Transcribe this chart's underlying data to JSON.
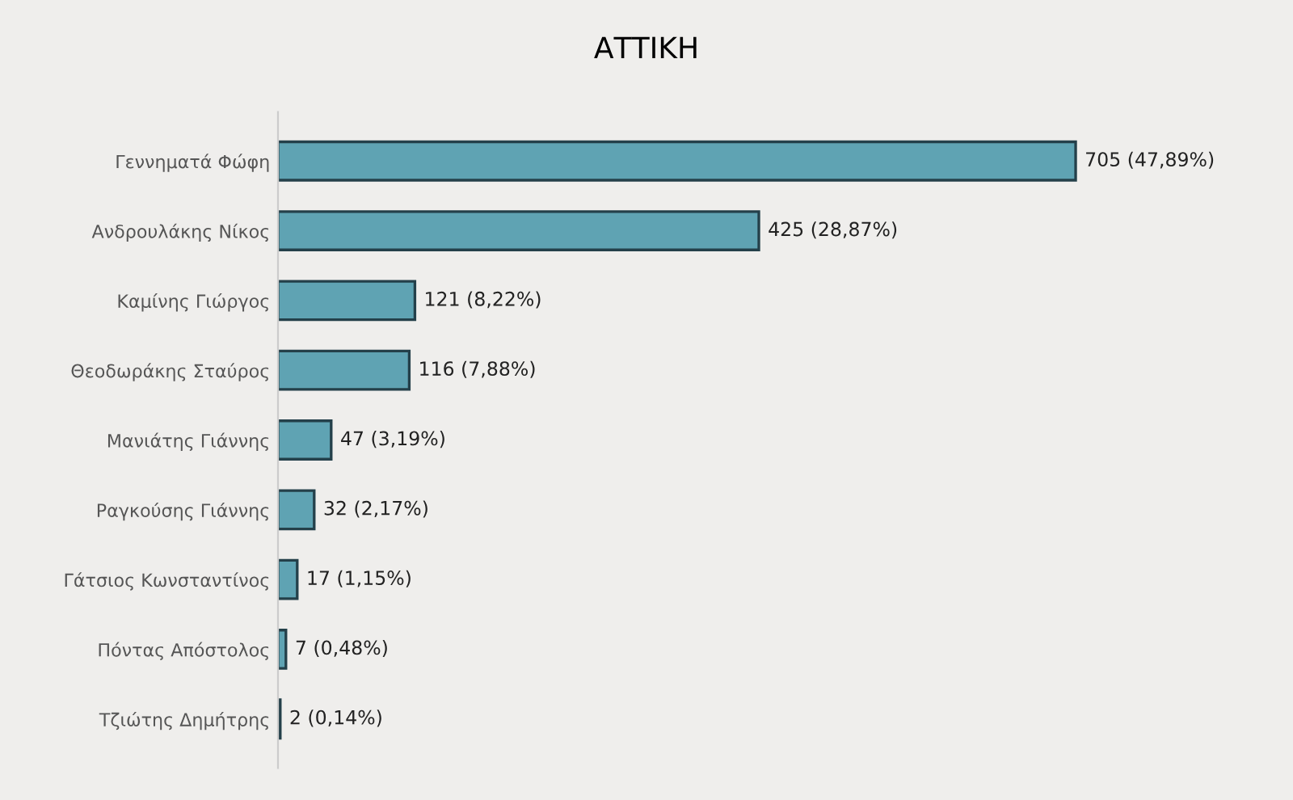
{
  "chart_data": {
    "type": "bar",
    "orientation": "horizontal",
    "title": "ΑΤΤΙΚΗ",
    "categories": [
      "Γεννηματά Φώφη",
      "Ανδρουλάκης Νίκος",
      "Καμίνης Γιώργος",
      "Θεοδωράκης Σταύρος",
      "Μανιάτης Γιάννης",
      "Ραγκούσης Γιάννης",
      "Γάτσιος Κωνσταντίνος",
      "Πόντας Απόστολος",
      "Τζιώτης Δημήτρης"
    ],
    "values": [
      705,
      425,
      121,
      116,
      47,
      32,
      17,
      7,
      2
    ],
    "value_labels": [
      "705 (47,89%)",
      "425 (28,87%)",
      "121 (8,22%)",
      "116 (7,88%)",
      "47 (3,19%)",
      "32 (2,17%)",
      "17 (1,15%)",
      "7 (0,48%)",
      "2 (0,14%)"
    ],
    "color": "#5fa3b3",
    "grid": false,
    "legend": false
  }
}
